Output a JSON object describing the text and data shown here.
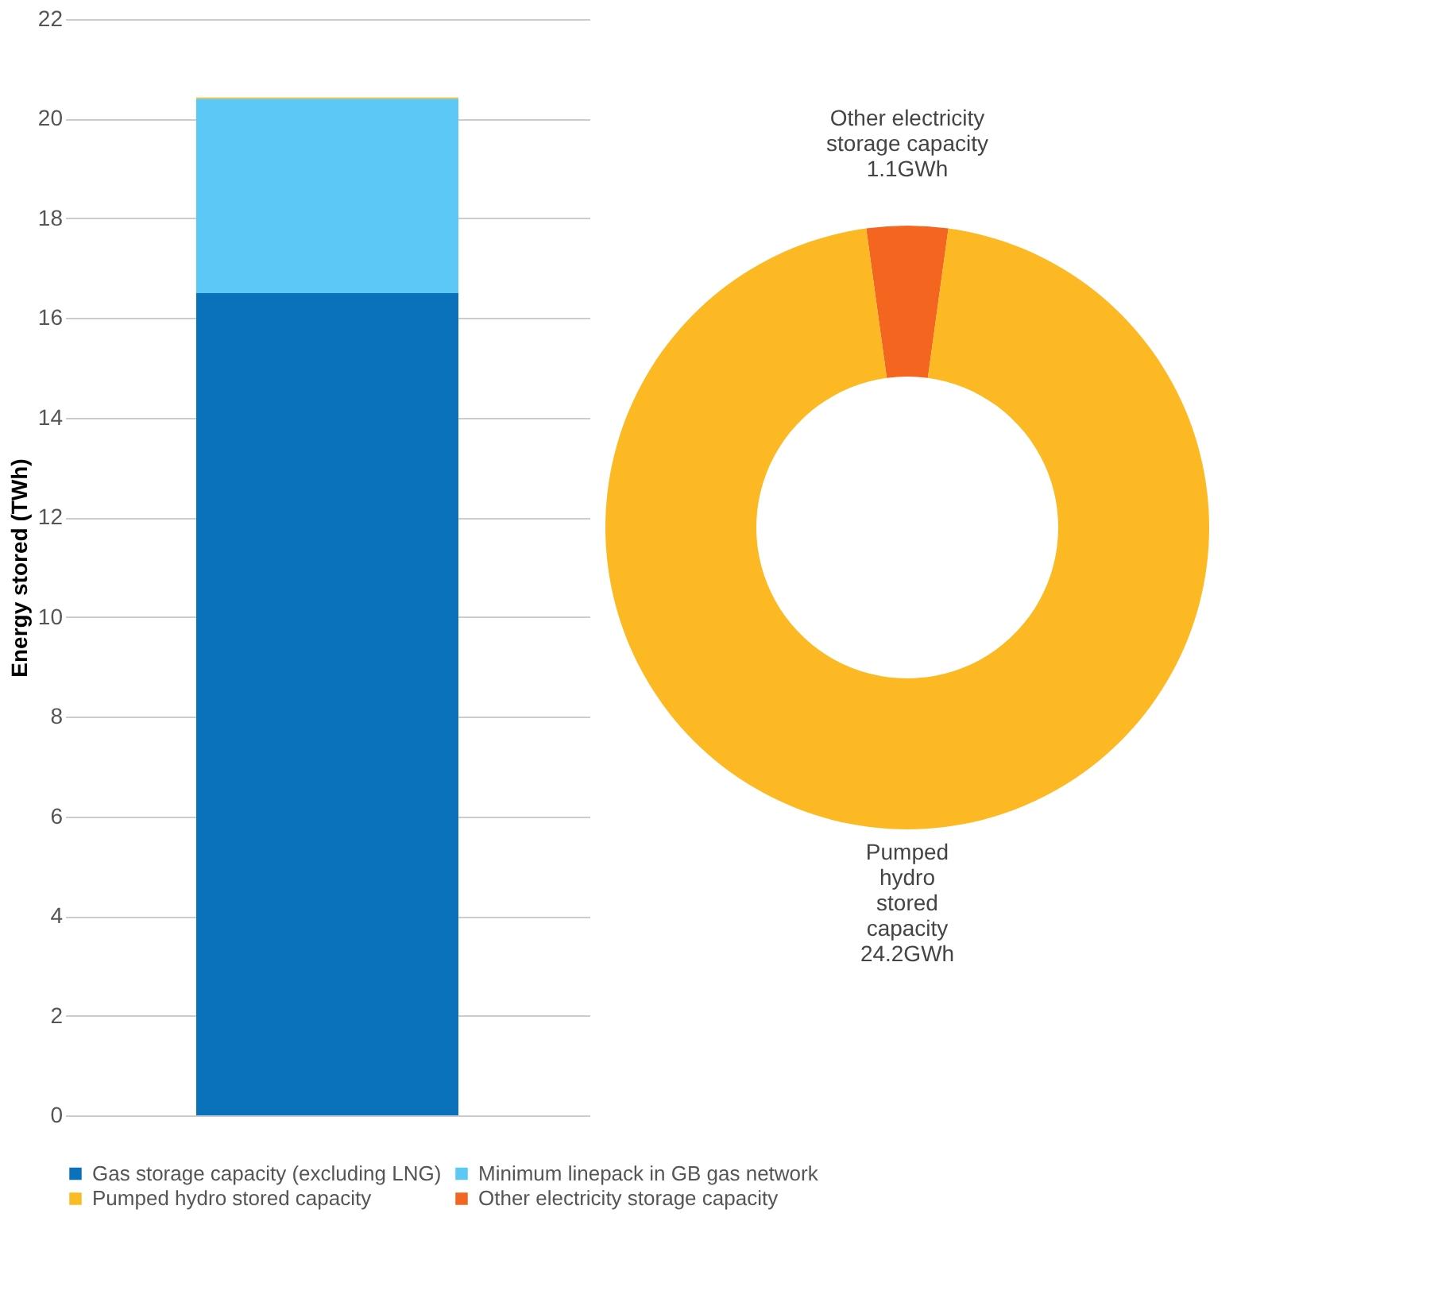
{
  "chart_data": [
    {
      "type": "bar",
      "stacked": true,
      "ylabel": "Energy stored (TWh)",
      "categories": [
        null
      ],
      "series": [
        {
          "name": "Gas storage capacity (excluding LNG)",
          "color": "#0a72ba",
          "values": [
            16.5
          ]
        },
        {
          "name": "Minimum linepack in GB gas network",
          "color": "#5bc8f5",
          "values": [
            3.9
          ]
        },
        {
          "name": "Pumped hydro stored capacity",
          "color": "#fbbb22",
          "values": [
            0.024
          ]
        },
        {
          "name": "Other electricity storage capacity",
          "color": "#f26522",
          "values": [
            0.001
          ]
        }
      ],
      "ylim": [
        0,
        22
      ],
      "yticks": [
        0,
        2,
        4,
        6,
        8,
        10,
        12,
        14,
        16,
        18,
        20,
        22
      ],
      "grid": "y",
      "legend": "bottom"
    },
    {
      "type": "donut",
      "categories": [
        "Other electricity storage capacity",
        "Pumped hydro stored capacity"
      ],
      "values": [
        1.1,
        24.2
      ],
      "colors": [
        "#f4661f",
        "#fcb924"
      ],
      "value_labels": [
        "1.1GWh",
        "24.2GWh"
      ],
      "legend": false
    }
  ]
}
